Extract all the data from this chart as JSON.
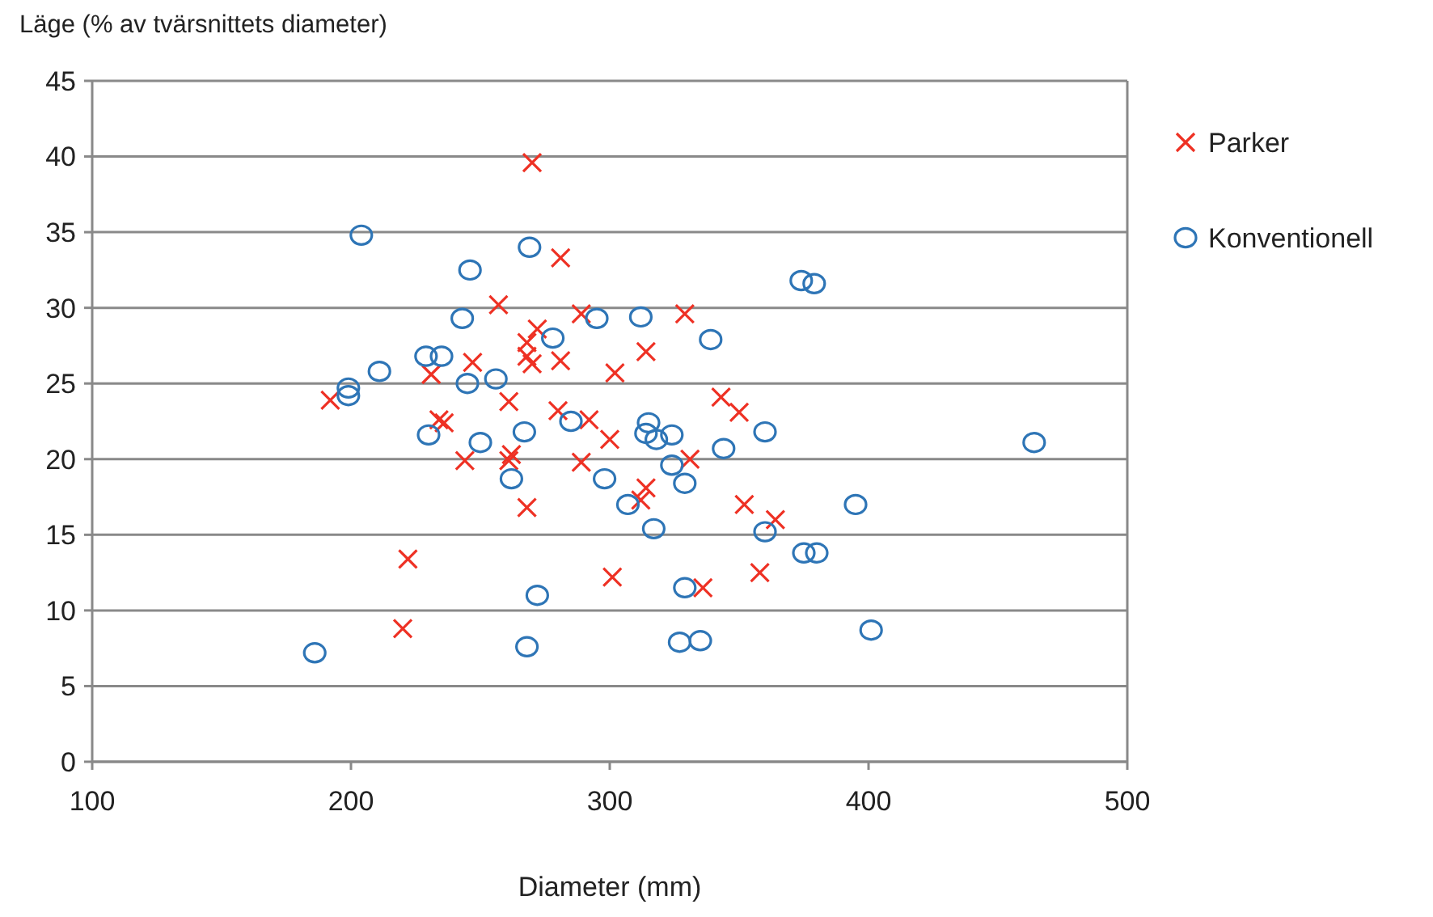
{
  "chart_data": {
    "type": "scatter",
    "xlabel": "Diameter (mm)",
    "ylabel": "Läge (% av tvärsnittets diameter)",
    "xlim": [
      100,
      500
    ],
    "ylim": [
      0,
      45
    ],
    "xticks": [
      100,
      200,
      300,
      400,
      500
    ],
    "yticks": [
      0,
      5,
      10,
      15,
      20,
      25,
      30,
      35,
      40,
      45
    ],
    "grid": "y",
    "legend": "right",
    "series": [
      {
        "name": "Parker",
        "color": "#ee3124",
        "marker": "cross",
        "x": [
          192,
          220,
          222,
          231,
          234,
          236,
          244,
          247,
          257,
          261,
          261,
          262,
          268,
          268,
          268,
          270,
          270,
          272,
          280,
          281,
          281,
          289,
          289,
          292,
          300,
          301,
          302,
          312,
          314,
          314,
          329,
          331,
          336,
          343,
          350,
          352,
          358,
          364
        ],
        "values": [
          23.9,
          8.8,
          13.4,
          25.6,
          22.6,
          22.4,
          19.9,
          26.4,
          30.2,
          23.8,
          19.9,
          20.3,
          26.8,
          16.8,
          27.7,
          26.3,
          39.6,
          28.6,
          23.2,
          26.5,
          33.3,
          19.8,
          29.6,
          22.6,
          21.3,
          12.2,
          25.7,
          17.3,
          18.1,
          27.1,
          29.6,
          20.0,
          11.5,
          24.1,
          23.1,
          17.0,
          12.5,
          16.0
        ]
      },
      {
        "name": "Konventionell",
        "color": "#2e75b6",
        "marker": "circle",
        "x": [
          186,
          199,
          199,
          204,
          211,
          229,
          230,
          235,
          243,
          245,
          246,
          250,
          256,
          262,
          267,
          268,
          269,
          272,
          278,
          285,
          295,
          298,
          307,
          312,
          314,
          315,
          317,
          318,
          324,
          324,
          327,
          329,
          329,
          335,
          339,
          344,
          360,
          360,
          374,
          375,
          379,
          380,
          395,
          401,
          464
        ],
        "values": [
          7.2,
          24.7,
          24.2,
          34.8,
          25.8,
          26.8,
          21.6,
          26.8,
          29.3,
          25.0,
          32.5,
          21.1,
          25.3,
          18.7,
          21.8,
          7.6,
          34.0,
          11.0,
          28.0,
          22.5,
          29.3,
          18.7,
          17.0,
          29.4,
          21.7,
          22.4,
          15.4,
          21.3,
          19.6,
          21.6,
          7.9,
          11.5,
          18.4,
          8.0,
          27.9,
          20.7,
          21.8,
          15.2,
          31.8,
          13.8,
          31.6,
          13.8,
          17.0,
          8.7,
          21.1
        ]
      }
    ]
  }
}
